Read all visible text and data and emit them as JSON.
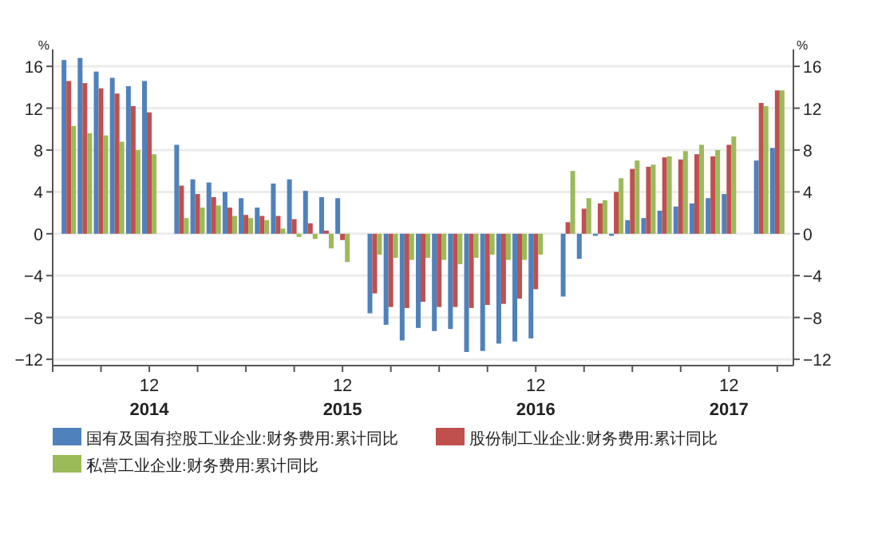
{
  "chart_data": {
    "type": "bar",
    "ylabel": "%",
    "y2label": "%",
    "x": [
      "2014-07",
      "2014-08",
      "2014-09",
      "2014-10",
      "2014-11",
      "2014-12",
      "2015-02",
      "2015-03",
      "2015-04",
      "2015-05",
      "2015-06",
      "2015-07",
      "2015-08",
      "2015-09",
      "2015-10",
      "2015-11",
      "2015-12",
      "2016-02",
      "2016-03",
      "2016-04",
      "2016-05",
      "2016-06",
      "2016-07",
      "2016-08",
      "2016-09",
      "2016-10",
      "2016-11",
      "2016-12",
      "2017-02",
      "2017-03",
      "2017-04",
      "2017-05",
      "2017-06",
      "2017-07",
      "2017-08",
      "2017-09",
      "2017-10",
      "2017-11",
      "2017-12",
      "2018-02",
      "2018-03"
    ],
    "series": [
      {
        "name": "国有及国有控股工业企业:财务费用:累计同比",
        "color": "#4f81bd",
        "values": [
          16.6,
          16.8,
          15.5,
          14.9,
          14.1,
          14.6,
          8.5,
          5.2,
          4.9,
          4.0,
          3.4,
          2.5,
          4.8,
          5.2,
          4.1,
          3.5,
          3.4,
          -7.6,
          -8.7,
          -10.2,
          -9.0,
          -9.3,
          -9.1,
          -11.3,
          -11.2,
          -10.5,
          -10.3,
          -10.0,
          -6.0,
          -2.4,
          -0.2,
          -0.2,
          1.3,
          1.5,
          2.2,
          2.6,
          2.9,
          3.4,
          3.8,
          7.0,
          8.2
        ]
      },
      {
        "name": "股份制工业企业:财务费用:累计同比",
        "color": "#c0504d",
        "values": [
          14.6,
          14.4,
          13.9,
          13.4,
          12.2,
          11.6,
          4.6,
          3.8,
          3.5,
          2.5,
          1.8,
          1.7,
          1.7,
          1.4,
          1.0,
          0.3,
          -0.6,
          -5.7,
          -7.0,
          -7.1,
          -6.5,
          -7.0,
          -7.0,
          -7.1,
          -6.8,
          -6.7,
          -6.2,
          -5.3,
          1.1,
          2.4,
          2.9,
          4.0,
          6.2,
          6.4,
          7.3,
          7.1,
          7.6,
          7.4,
          8.5,
          12.5,
          13.7
        ]
      },
      {
        "name": "私营工业企业:财务费用:累计同比",
        "color": "#9bbb59",
        "values": [
          10.3,
          9.6,
          9.4,
          8.8,
          8.0,
          7.6,
          1.5,
          2.5,
          2.7,
          1.7,
          1.5,
          1.3,
          0.5,
          -0.3,
          -0.5,
          -1.4,
          -2.7,
          -2.0,
          -2.3,
          -2.5,
          -2.3,
          -2.5,
          -2.9,
          -2.3,
          -2.0,
          -2.5,
          -2.5,
          -2.0,
          6.0,
          3.4,
          3.2,
          5.3,
          7.0,
          6.6,
          7.4,
          7.9,
          8.5,
          8.0,
          9.3,
          12.2,
          13.7
        ]
      }
    ],
    "xlim": [
      "2014-06",
      "2018-04"
    ],
    "xticks": [
      {
        "value": "2014-06",
        "label": null
      },
      {
        "value": "2014-09",
        "label": null
      },
      {
        "value": "2014-12",
        "label": "12\n2014"
      },
      {
        "value": "2015-03",
        "label": null
      },
      {
        "value": "2015-06",
        "label": null
      },
      {
        "value": "2015-09",
        "label": null
      },
      {
        "value": "2015-12",
        "label": "12\n2015"
      },
      {
        "value": "2016-03",
        "label": null
      },
      {
        "value": "2016-06",
        "label": null
      },
      {
        "value": "2016-09",
        "label": null
      },
      {
        "value": "2016-12",
        "label": "12\n2016"
      },
      {
        "value": "2017-03",
        "label": null
      },
      {
        "value": "2017-06",
        "label": null
      },
      {
        "value": "2017-09",
        "label": null
      },
      {
        "value": "2017-12",
        "label": "12\n2017"
      },
      {
        "value": "2018-03",
        "label": null
      }
    ],
    "ylim": [
      -12.6,
      17
    ],
    "yticks": [
      -12,
      -8,
      -4,
      0,
      4,
      8,
      12,
      16
    ],
    "y2lim": [
      -12.6,
      17
    ],
    "y2ticks": [
      -12,
      -8,
      -4,
      0,
      4,
      8,
      12,
      16
    ],
    "grid": "y",
    "legend": "bottom"
  }
}
